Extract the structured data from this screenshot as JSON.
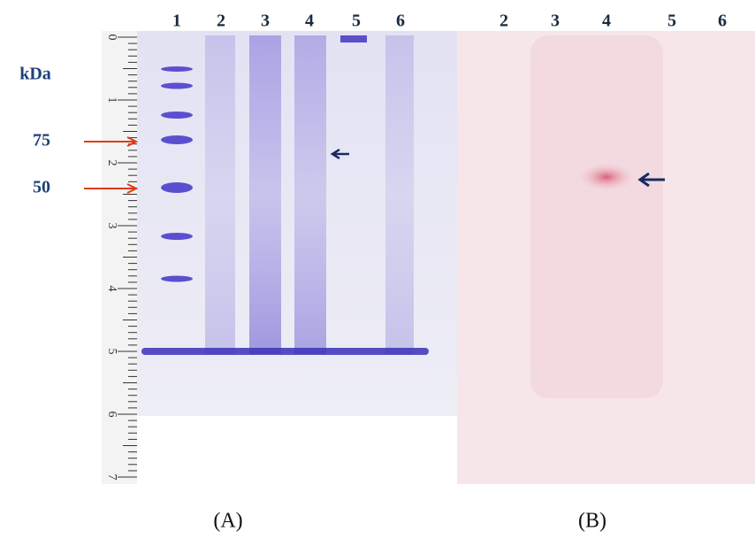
{
  "panel_a": {
    "lanes": [
      "1",
      "2",
      "3",
      "4",
      "5",
      "6"
    ],
    "unit": "kDa",
    "markers": [
      "75",
      "50"
    ],
    "ruler": [
      "0",
      "1",
      "2",
      "3",
      "4",
      "5",
      "6",
      "7"
    ],
    "caption": "(A)"
  },
  "panel_b": {
    "lanes": [
      "2",
      "3",
      "4",
      "5",
      "6"
    ],
    "caption": "(B)"
  }
}
